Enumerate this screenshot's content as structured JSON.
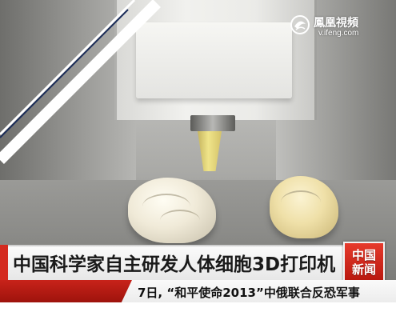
{
  "logo": {
    "name_cn": "鳳凰視頻",
    "url": "v.ifeng.com",
    "icon": "phoenix-logo-icon"
  },
  "headline": {
    "text": "中国科学家自主研发人体细胞3D打印机",
    "accent_color": "#d42a1f"
  },
  "badge": {
    "line1": "中国",
    "line2": "新闻",
    "color": "#d42a1f"
  },
  "ticker": {
    "text": "7日, “和平使命2013”中俄联合反恐军事"
  }
}
